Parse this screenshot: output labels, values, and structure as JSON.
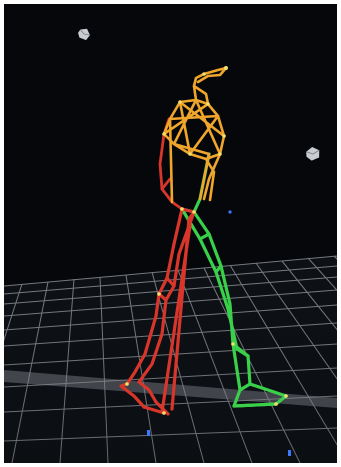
{
  "scene": {
    "background_color": "#05070a",
    "floor_grid_color": "#cfd3d8",
    "marker_color": "#dfe3e8",
    "skeleton_colors": {
      "right_leg": "#d9362b",
      "left_leg": "#39d04a",
      "upper_body": "#f0a62b",
      "tips": "#f3df6d"
    }
  }
}
